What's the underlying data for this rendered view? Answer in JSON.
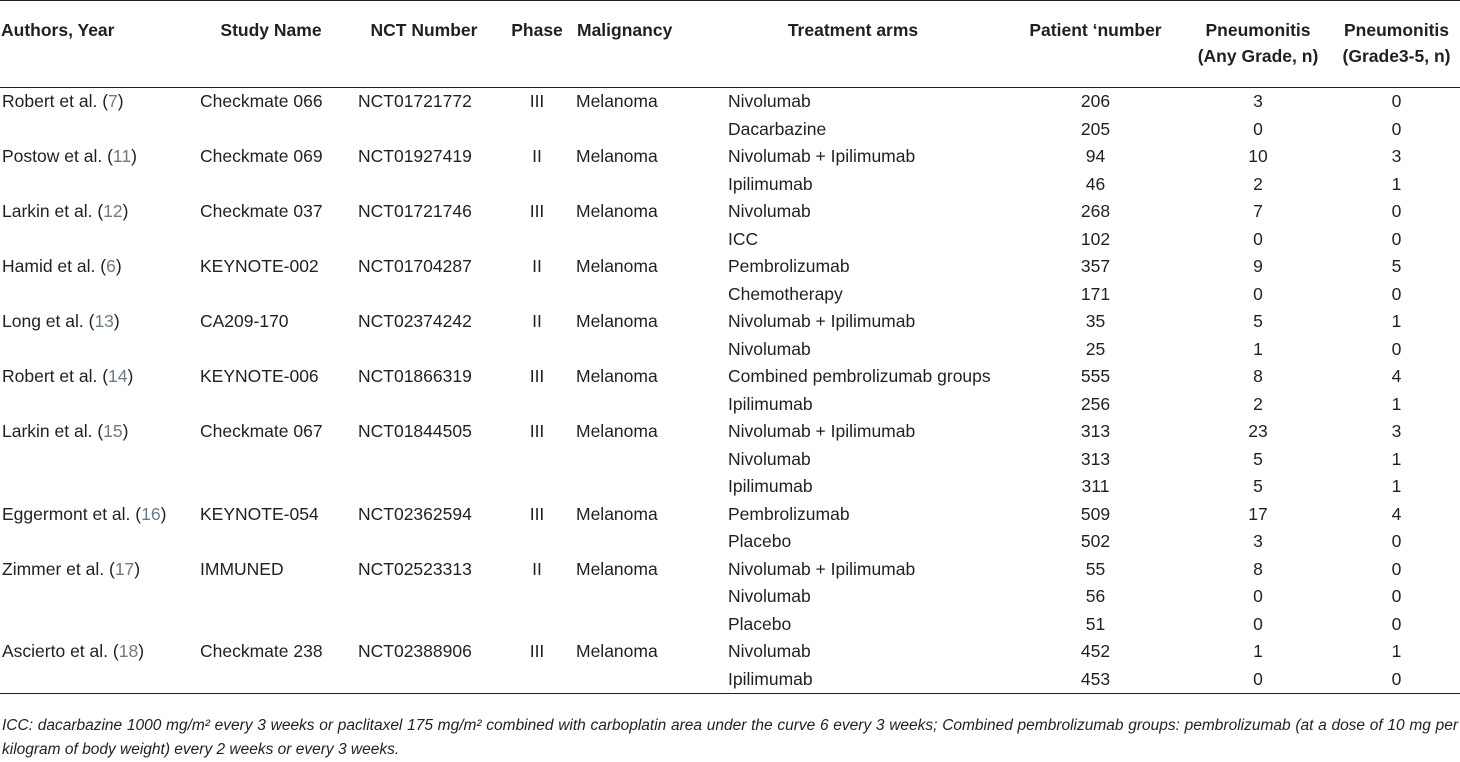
{
  "headers": [
    "Authors, Year",
    "Study Name",
    "NCT Number",
    "Phase",
    "Malignancy",
    "Treatment arms",
    "Patient ‘number",
    "Pneumonitis\n(Any Grade, n)",
    "Pneumonitis\n(Grade3-5, n)"
  ],
  "rows": [
    {
      "author": "Robert et al.",
      "ref": "7",
      "study": "Checkmate 066",
      "nct": "NCT01721772",
      "phase": "III",
      "malignancy": "Melanoma",
      "arm": "Nivolumab",
      "n": "206",
      "any": "3",
      "g35": "0"
    },
    {
      "author": "",
      "ref": "",
      "study": "",
      "nct": "",
      "phase": "",
      "malignancy": "",
      "arm": "Dacarbazine",
      "n": "205",
      "any": "0",
      "g35": "0"
    },
    {
      "author": "Postow et al.",
      "ref": "11",
      "study": "Checkmate 069",
      "nct": "NCT01927419",
      "phase": "II",
      "malignancy": "Melanoma",
      "arm": "Nivolumab + Ipilimumab",
      "n": "94",
      "any": "10",
      "g35": "3"
    },
    {
      "author": "",
      "ref": "",
      "study": "",
      "nct": "",
      "phase": "",
      "malignancy": "",
      "arm": "Ipilimumab",
      "n": "46",
      "any": "2",
      "g35": "1"
    },
    {
      "author": "Larkin et al.",
      "ref": "12",
      "study": "Checkmate 037",
      "nct": "NCT01721746",
      "phase": "III",
      "malignancy": "Melanoma",
      "arm": "Nivolumab",
      "n": "268",
      "any": "7",
      "g35": "0"
    },
    {
      "author": "",
      "ref": "",
      "study": "",
      "nct": "",
      "phase": "",
      "malignancy": "",
      "arm": "ICC",
      "n": "102",
      "any": "0",
      "g35": "0"
    },
    {
      "author": "Hamid et al.",
      "ref": "6",
      "study": "KEYNOTE-002",
      "nct": "NCT01704287",
      "phase": "II",
      "malignancy": "Melanoma",
      "arm": "Pembrolizumab",
      "n": "357",
      "any": "9",
      "g35": "5"
    },
    {
      "author": "",
      "ref": "",
      "study": "",
      "nct": "",
      "phase": "",
      "malignancy": "",
      "arm": "Chemotherapy",
      "n": "171",
      "any": "0",
      "g35": "0"
    },
    {
      "author": "Long et al.",
      "ref": "13",
      "study": "CA209-170",
      "nct": "NCT02374242",
      "phase": "II",
      "malignancy": "Melanoma",
      "arm": "Nivolumab + Ipilimumab",
      "n": "35",
      "any": "5",
      "g35": "1"
    },
    {
      "author": "",
      "ref": "",
      "study": "",
      "nct": "",
      "phase": "",
      "malignancy": "",
      "arm": "Nivolumab",
      "n": "25",
      "any": "1",
      "g35": "0"
    },
    {
      "author": "Robert et al.",
      "ref": "14",
      "study": "KEYNOTE-006",
      "nct": "NCT01866319",
      "phase": "III",
      "malignancy": "Melanoma",
      "arm": "Combined pembrolizumab groups",
      "n": "555",
      "any": "8",
      "g35": "4"
    },
    {
      "author": "",
      "ref": "",
      "study": "",
      "nct": "",
      "phase": "",
      "malignancy": "",
      "arm": "Ipilimumab",
      "n": "256",
      "any": "2",
      "g35": "1"
    },
    {
      "author": "Larkin et al.",
      "ref": "15",
      "study": "Checkmate 067",
      "nct": "NCT01844505",
      "phase": "III",
      "malignancy": "Melanoma",
      "arm": "Nivolumab + Ipilimumab",
      "n": "313",
      "any": "23",
      "g35": "3"
    },
    {
      "author": "",
      "ref": "",
      "study": "",
      "nct": "",
      "phase": "",
      "malignancy": "",
      "arm": "Nivolumab",
      "n": "313",
      "any": "5",
      "g35": "1"
    },
    {
      "author": "",
      "ref": "",
      "study": "",
      "nct": "",
      "phase": "",
      "malignancy": "",
      "arm": "Ipilimumab",
      "n": "311",
      "any": "5",
      "g35": "1"
    },
    {
      "author": "Eggermont et al.",
      "ref": "16",
      "study": "KEYNOTE-054",
      "nct": "NCT02362594",
      "phase": "III",
      "malignancy": "Melanoma",
      "arm": "Pembrolizumab",
      "n": "509",
      "any": "17",
      "g35": "4"
    },
    {
      "author": "",
      "ref": "",
      "study": "",
      "nct": "",
      "phase": "",
      "malignancy": "",
      "arm": "Placebo",
      "n": "502",
      "any": "3",
      "g35": "0"
    },
    {
      "author": "Zimmer et al.",
      "ref": "17",
      "study": "IMMUNED",
      "nct": "NCT02523313",
      "phase": "II",
      "malignancy": "Melanoma",
      "arm": "Nivolumab + Ipilimumab",
      "n": "55",
      "any": "8",
      "g35": "0"
    },
    {
      "author": "",
      "ref": "",
      "study": "",
      "nct": "",
      "phase": "",
      "malignancy": "",
      "arm": "Nivolumab",
      "n": "56",
      "any": "0",
      "g35": "0"
    },
    {
      "author": "",
      "ref": "",
      "study": "",
      "nct": "",
      "phase": "",
      "malignancy": "",
      "arm": "Placebo",
      "n": "51",
      "any": "0",
      "g35": "0"
    },
    {
      "author": "Ascierto et al.",
      "ref": "18",
      "study": "Checkmate 238",
      "nct": "NCT02388906",
      "phase": "III",
      "malignancy": "Melanoma",
      "arm": "Nivolumab",
      "n": "452",
      "any": "1",
      "g35": "1"
    },
    {
      "author": "",
      "ref": "",
      "study": "",
      "nct": "",
      "phase": "",
      "malignancy": "",
      "arm": "Ipilimumab",
      "n": "453",
      "any": "0",
      "g35": "0"
    }
  ],
  "footnote": "ICC: dacarbazine 1000 mg/m² every 3 weeks or paclitaxel 175 mg/m² combined with carboplatin area under the curve 6 every 3 weeks; Combined pembrolizumab groups: pembrolizumab (at a dose of 10 mg per kilogram of body weight) every 2 weeks or every 3 weeks.",
  "colors": {
    "text": "#231f20",
    "reference_link": "#6d7a85",
    "rule": "#231f20",
    "background": "#ffffff"
  }
}
